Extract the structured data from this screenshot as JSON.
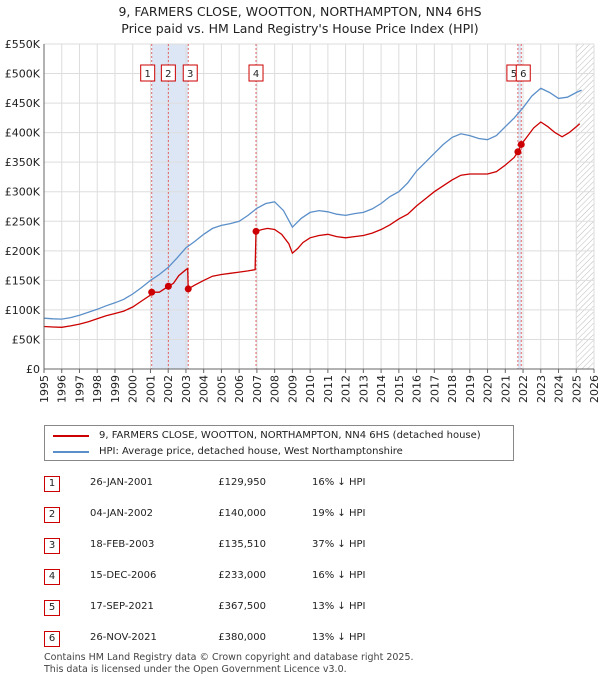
{
  "title_line1": "9, FARMERS CLOSE, WOOTTON, NORTHAMPTON, NN4 6HS",
  "title_line2": "Price paid vs. HM Land Registry's House Price Index (HPI)",
  "colors": {
    "property": "#cc0000",
    "hpi": "#5b8fc9",
    "highlight": "#dde6f4",
    "hatch": "#bbbbbb",
    "grid": "#dddddd"
  },
  "legend": {
    "property": "9, FARMERS CLOSE, WOOTTON, NORTHAMPTON, NN4 6HS (detached house)",
    "hpi": "HPI: Average price, detached house, West Northamptonshire"
  },
  "transactions": [
    {
      "num": "1",
      "date": "26-JAN-2001",
      "price": "£129,950",
      "hpi": "16% ↓ HPI"
    },
    {
      "num": "2",
      "date": "04-JAN-2002",
      "price": "£140,000",
      "hpi": "19% ↓ HPI"
    },
    {
      "num": "3",
      "date": "18-FEB-2003",
      "price": "£135,510",
      "hpi": "37% ↓ HPI"
    },
    {
      "num": "4",
      "date": "15-DEC-2006",
      "price": "£233,000",
      "hpi": "16% ↓ HPI"
    },
    {
      "num": "5",
      "date": "17-SEP-2021",
      "price": "£367,500",
      "hpi": "13% ↓ HPI"
    },
    {
      "num": "6",
      "date": "26-NOV-2021",
      "price": "£380,000",
      "hpi": "13% ↓ HPI"
    }
  ],
  "footer_line1": "Contains HM Land Registry data © Crown copyright and database right 2025.",
  "footer_line2": "This data is licensed under the Open Government Licence v3.0.",
  "chart_data": {
    "type": "line",
    "xlim": [
      1995,
      2026
    ],
    "ylim": [
      0,
      550000
    ],
    "x_ticks": [
      "1995",
      "1996",
      "1997",
      "1998",
      "1999",
      "2000",
      "2001",
      "2002",
      "2003",
      "2004",
      "2005",
      "2006",
      "2007",
      "2008",
      "2009",
      "2010",
      "2011",
      "2012",
      "2013",
      "2014",
      "2015",
      "2016",
      "2017",
      "2018",
      "2019",
      "2020",
      "2021",
      "2022",
      "2023",
      "2024",
      "2025",
      "2026"
    ],
    "y_ticks": [
      {
        "value": 0,
        "label": "£0"
      },
      {
        "value": 50000,
        "label": "£50K"
      },
      {
        "value": 100000,
        "label": "£100K"
      },
      {
        "value": 150000,
        "label": "£150K"
      },
      {
        "value": 200000,
        "label": "£200K"
      },
      {
        "value": 250000,
        "label": "£250K"
      },
      {
        "value": 300000,
        "label": "£300K"
      },
      {
        "value": 350000,
        "label": "£350K"
      },
      {
        "value": 400000,
        "label": "£400K"
      },
      {
        "value": 450000,
        "label": "£450K"
      },
      {
        "value": 500000,
        "label": "£500K"
      },
      {
        "value": 550000,
        "label": "£550K"
      }
    ],
    "grid": true,
    "hatched_from": 2025.0,
    "sale_markers": [
      {
        "label": "1",
        "x": 2001.07,
        "y": 129950
      },
      {
        "label": "2",
        "x": 2002.01,
        "y": 140000
      },
      {
        "label": "3",
        "x": 2003.13,
        "y": 135510
      },
      {
        "label": "4",
        "x": 2006.95,
        "y": 233000
      },
      {
        "label": "5",
        "x": 2021.71,
        "y": 367500
      },
      {
        "label": "6",
        "x": 2021.9,
        "y": 380000
      }
    ],
    "highlight_spans": [
      [
        2001.07,
        2003.13
      ],
      [
        2021.71,
        2021.9
      ]
    ],
    "series": [
      {
        "name": "9, FARMERS CLOSE, WOOTTON, NORTHAMPTON, NN4 6HS (detached house)",
        "color": "#cc0000",
        "points": [
          [
            1995.0,
            72000
          ],
          [
            1995.5,
            71000
          ],
          [
            1996.0,
            70500
          ],
          [
            1996.5,
            73000
          ],
          [
            1997.0,
            76000
          ],
          [
            1997.5,
            80000
          ],
          [
            1998.0,
            85000
          ],
          [
            1998.5,
            90000
          ],
          [
            1999.0,
            94000
          ],
          [
            1999.5,
            98000
          ],
          [
            2000.0,
            105000
          ],
          [
            2000.5,
            115000
          ],
          [
            2001.0,
            125000
          ],
          [
            2001.07,
            129950
          ],
          [
            2001.5,
            130000
          ],
          [
            2002.01,
            140000
          ],
          [
            2002.3,
            145000
          ],
          [
            2002.6,
            158000
          ],
          [
            2003.0,
            168000
          ],
          [
            2003.1,
            170000
          ],
          [
            2003.13,
            135510
          ],
          [
            2003.5,
            142000
          ],
          [
            2004.0,
            150000
          ],
          [
            2004.5,
            157000
          ],
          [
            2005.0,
            160000
          ],
          [
            2005.5,
            162000
          ],
          [
            2006.0,
            164000
          ],
          [
            2006.5,
            166000
          ],
          [
            2006.9,
            168000
          ],
          [
            2006.95,
            233000
          ],
          [
            2007.3,
            236000
          ],
          [
            2007.6,
            238000
          ],
          [
            2008.0,
            236000
          ],
          [
            2008.4,
            228000
          ],
          [
            2008.8,
            212000
          ],
          [
            2009.0,
            196000
          ],
          [
            2009.3,
            204000
          ],
          [
            2009.6,
            214000
          ],
          [
            2010.0,
            222000
          ],
          [
            2010.5,
            226000
          ],
          [
            2011.0,
            228000
          ],
          [
            2011.5,
            224000
          ],
          [
            2012.0,
            222000
          ],
          [
            2012.5,
            224000
          ],
          [
            2013.0,
            226000
          ],
          [
            2013.5,
            230000
          ],
          [
            2014.0,
            236000
          ],
          [
            2014.5,
            244000
          ],
          [
            2015.0,
            254000
          ],
          [
            2015.5,
            262000
          ],
          [
            2016.0,
            276000
          ],
          [
            2016.5,
            288000
          ],
          [
            2017.0,
            300000
          ],
          [
            2017.5,
            310000
          ],
          [
            2018.0,
            320000
          ],
          [
            2018.5,
            328000
          ],
          [
            2019.0,
            330000
          ],
          [
            2019.5,
            330000
          ],
          [
            2020.0,
            330000
          ],
          [
            2020.5,
            334000
          ],
          [
            2021.0,
            345000
          ],
          [
            2021.5,
            358000
          ],
          [
            2021.71,
            367500
          ],
          [
            2021.9,
            380000
          ],
          [
            2022.2,
            392000
          ],
          [
            2022.6,
            408000
          ],
          [
            2023.0,
            418000
          ],
          [
            2023.4,
            410000
          ],
          [
            2023.8,
            400000
          ],
          [
            2024.2,
            393000
          ],
          [
            2024.6,
            400000
          ],
          [
            2025.0,
            410000
          ],
          [
            2025.2,
            415000
          ]
        ]
      },
      {
        "name": "HPI: Average price, detached house, West Northamptonshire",
        "color": "#5b8fc9",
        "points": [
          [
            1995.0,
            86000
          ],
          [
            1995.5,
            85000
          ],
          [
            1996.0,
            84500
          ],
          [
            1996.5,
            87000
          ],
          [
            1997.0,
            91000
          ],
          [
            1997.5,
            96000
          ],
          [
            1998.0,
            101000
          ],
          [
            1998.5,
            107000
          ],
          [
            1999.0,
            112000
          ],
          [
            1999.5,
            118000
          ],
          [
            2000.0,
            127000
          ],
          [
            2000.5,
            138000
          ],
          [
            2001.0,
            150000
          ],
          [
            2001.5,
            160000
          ],
          [
            2002.0,
            172000
          ],
          [
            2002.5,
            188000
          ],
          [
            2003.0,
            205000
          ],
          [
            2003.5,
            216000
          ],
          [
            2004.0,
            228000
          ],
          [
            2004.5,
            238000
          ],
          [
            2005.0,
            243000
          ],
          [
            2005.5,
            246000
          ],
          [
            2006.0,
            250000
          ],
          [
            2006.5,
            260000
          ],
          [
            2007.0,
            272000
          ],
          [
            2007.5,
            280000
          ],
          [
            2008.0,
            283000
          ],
          [
            2008.5,
            268000
          ],
          [
            2009.0,
            240000
          ],
          [
            2009.5,
            255000
          ],
          [
            2010.0,
            265000
          ],
          [
            2010.5,
            268000
          ],
          [
            2011.0,
            266000
          ],
          [
            2011.5,
            262000
          ],
          [
            2012.0,
            260000
          ],
          [
            2012.5,
            263000
          ],
          [
            2013.0,
            265000
          ],
          [
            2013.5,
            271000
          ],
          [
            2014.0,
            280000
          ],
          [
            2014.5,
            292000
          ],
          [
            2015.0,
            300000
          ],
          [
            2015.5,
            315000
          ],
          [
            2016.0,
            335000
          ],
          [
            2016.5,
            350000
          ],
          [
            2017.0,
            365000
          ],
          [
            2017.5,
            380000
          ],
          [
            2018.0,
            392000
          ],
          [
            2018.5,
            398000
          ],
          [
            2019.0,
            395000
          ],
          [
            2019.5,
            390000
          ],
          [
            2020.0,
            388000
          ],
          [
            2020.5,
            395000
          ],
          [
            2021.0,
            410000
          ],
          [
            2021.5,
            425000
          ],
          [
            2022.0,
            442000
          ],
          [
            2022.5,
            462000
          ],
          [
            2023.0,
            475000
          ],
          [
            2023.5,
            468000
          ],
          [
            2024.0,
            458000
          ],
          [
            2024.5,
            460000
          ],
          [
            2025.0,
            468000
          ],
          [
            2025.3,
            472000
          ]
        ]
      }
    ]
  }
}
